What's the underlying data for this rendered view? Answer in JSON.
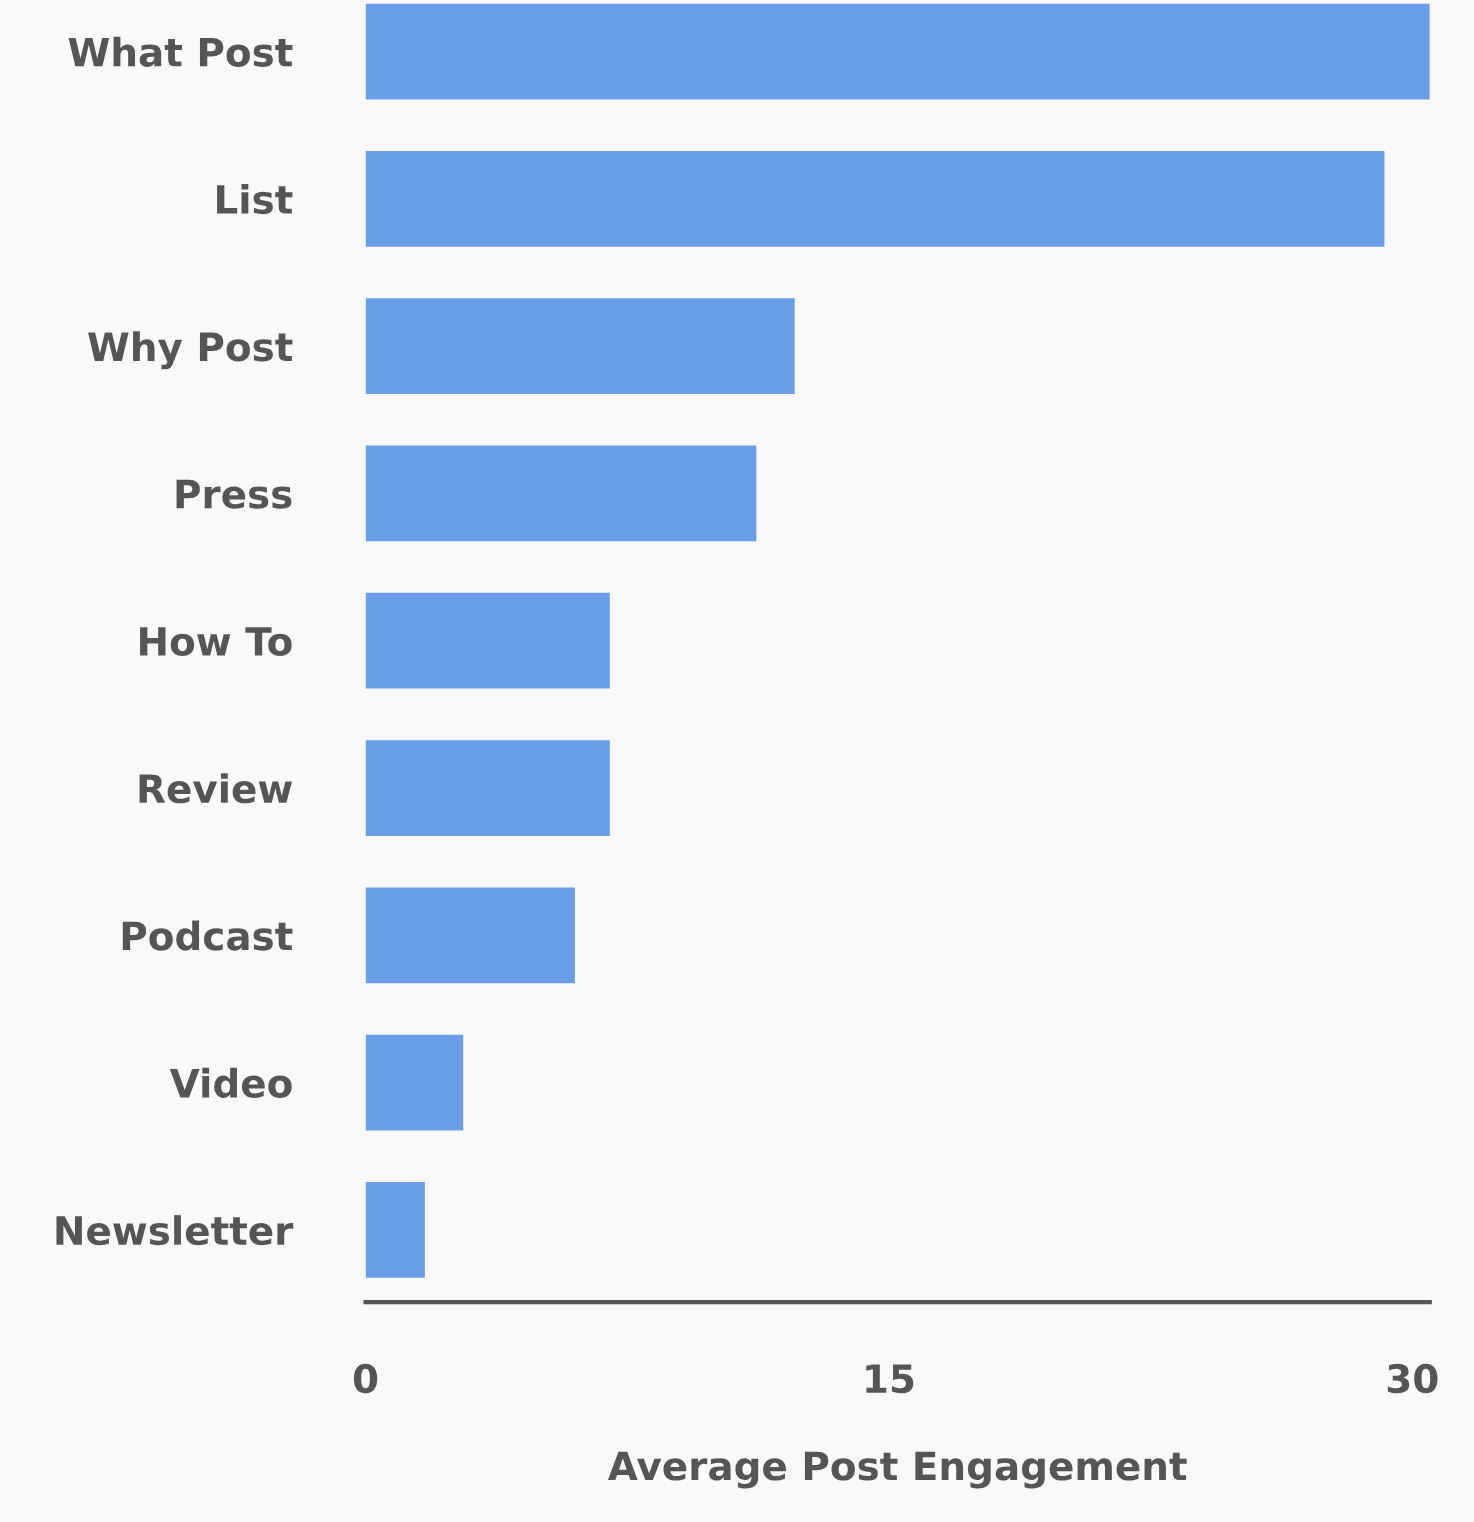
{
  "chart_data": {
    "type": "bar",
    "orientation": "horizontal",
    "xlabel": "Average Post Engagement",
    "categories": [
      "What Post",
      "List",
      "Why Post",
      "Press",
      "How To",
      "Review",
      "Podcast",
      "Video",
      "Newsletter"
    ],
    "values": [
      30.5,
      29.2,
      12.3,
      11.2,
      7.0,
      7.0,
      6.0,
      2.8,
      1.7
    ],
    "color": "#6b9ee9",
    "xlim": [
      0,
      30.5
    ],
    "xticks": [
      0,
      15,
      30
    ],
    "grid": false,
    "legend": false
  }
}
